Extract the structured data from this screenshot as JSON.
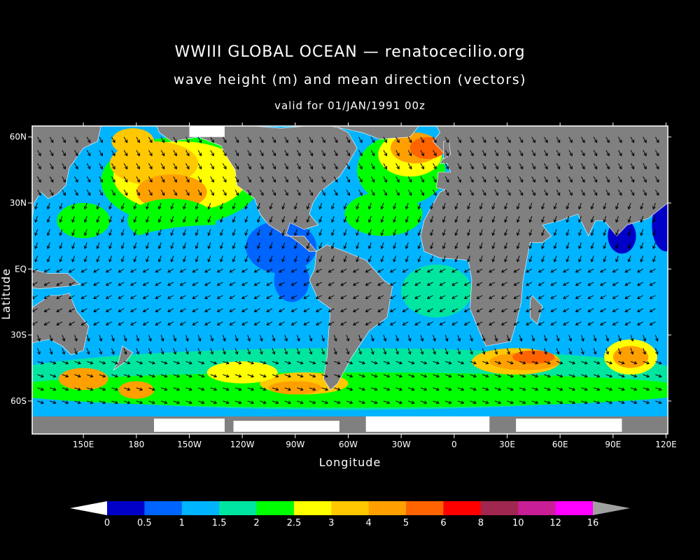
{
  "header": {
    "title": "WWIII GLOBAL OCEAN — renatocecilio.org",
    "subtitle": "wave height (m) and mean direction (vectors)",
    "valid_time": "valid for 01/JAN/1991 00z"
  },
  "axes": {
    "x_label": "Longitude",
    "y_label": "Latitude",
    "x_ticks": [
      {
        "lon": 150,
        "label": "150E"
      },
      {
        "lon": 180,
        "label": "180"
      },
      {
        "lon": 210,
        "label": "150W"
      },
      {
        "lon": 240,
        "label": "120W"
      },
      {
        "lon": 270,
        "label": "90W"
      },
      {
        "lon": 300,
        "label": "60W"
      },
      {
        "lon": 330,
        "label": "30W"
      },
      {
        "lon": 360,
        "label": "0"
      },
      {
        "lon": 390,
        "label": "30E"
      },
      {
        "lon": 420,
        "label": "60E"
      },
      {
        "lon": 450,
        "label": "90E"
      },
      {
        "lon": 480,
        "label": "120E"
      }
    ],
    "y_ticks": [
      {
        "lat": 60,
        "label": "60N"
      },
      {
        "lat": 30,
        "label": "30N"
      },
      {
        "lat": 0,
        "label": "EQ"
      },
      {
        "lat": -30,
        "label": "30S"
      },
      {
        "lat": -60,
        "label": "60S"
      }
    ],
    "lon_range": [
      121,
      481
    ],
    "lat_range": [
      -75,
      65
    ]
  },
  "colorbar": {
    "levels": [
      "0",
      "0.5",
      "1",
      "1.5",
      "2",
      "2.5",
      "3",
      "4",
      "5",
      "6",
      "8",
      "10",
      "12",
      "16"
    ],
    "colors": [
      "#0000c8",
      "#0064ff",
      "#00b4ff",
      "#00e6a0",
      "#00ff00",
      "#ffff00",
      "#ffc800",
      "#ffa000",
      "#ff6400",
      "#ff0000",
      "#a02850",
      "#c81e96",
      "#ff00ff"
    ],
    "under_color": "#ffffff",
    "over_color": "#a0a0a0"
  },
  "map": {
    "land_color": "#808080",
    "ice_color": "#ffffff",
    "arrow_color": "#000000"
  }
}
